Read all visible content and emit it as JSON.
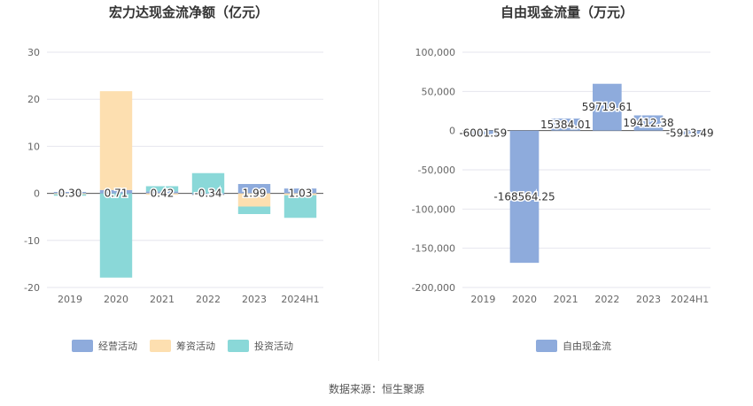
{
  "source": "数据来源：恒生聚源",
  "chart_data": [
    {
      "type": "bar",
      "stacked": true,
      "title": "宏力达现金流净额（亿元）",
      "xlabel": "",
      "ylabel": "",
      "categories": [
        "2019",
        "2020",
        "2021",
        "2022",
        "2023",
        "2024H1"
      ],
      "ylim": [
        -20,
        30
      ],
      "yticks": [
        -20,
        -10,
        0,
        10,
        20,
        30
      ],
      "grid": true,
      "legend_position": "bottom",
      "series": [
        {
          "name": "经营活动",
          "color": "#8eabdc",
          "values": [
            0.3,
            0.71,
            0.42,
            -0.34,
            1.99,
            1.03
          ]
        },
        {
          "name": "筹资活动",
          "color": "#fddfb0",
          "values": [
            -0.2,
            21.0,
            -0.3,
            -0.1,
            -2.8,
            -0.4
          ]
        },
        {
          "name": "投资活动",
          "color": "#8ad8d8",
          "values": [
            -0.3,
            -17.9,
            1.1,
            4.3,
            -1.6,
            -4.8
          ]
        }
      ],
      "data_labels": [
        "0.30",
        "0.71",
        "0.42",
        "-0.34",
        "1.99",
        "1.03"
      ]
    },
    {
      "type": "bar",
      "title": "自由现金流量（万元）",
      "xlabel": "",
      "ylabel": "",
      "categories": [
        "2019",
        "2020",
        "2021",
        "2022",
        "2023",
        "2024H1"
      ],
      "ylim": [
        -200000,
        100000
      ],
      "yticks": [
        -200000,
        -150000,
        -100000,
        -50000,
        0,
        50000,
        100000
      ],
      "ytick_labels": [
        "-200,000",
        "-150,000",
        "-100,000",
        "-50,000",
        "0",
        "50,000",
        "100,000"
      ],
      "grid": true,
      "legend_position": "bottom",
      "series": [
        {
          "name": "自由现金流",
          "color": "#8eabdc",
          "values": [
            -6001.59,
            -168564.25,
            15384.01,
            59719.61,
            19412.38,
            -5913.49
          ]
        }
      ],
      "data_labels": [
        "-6001.59",
        "-168564.25",
        "15384.01",
        "59719.61",
        "19412.38",
        "-5913.49"
      ]
    }
  ]
}
